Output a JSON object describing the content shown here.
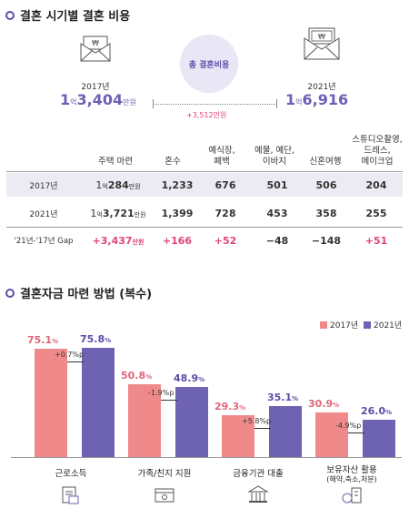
{
  "section1": {
    "title": "결혼 시기별 결혼 비용",
    "center_label": "총 결혼비용",
    "left": {
      "year": "2017년",
      "prefix": "1",
      "unit_eok": "억",
      "value": "3,404",
      "unit": "만원"
    },
    "right": {
      "year": "2021년",
      "prefix": "1",
      "unit_eok": "억",
      "value": "6,916"
    },
    "diff": "+3,512만원"
  },
  "table": {
    "headers": [
      "주택 마련",
      "혼수",
      "예식장,\n폐백",
      "예물, 예단,\n이바지",
      "신혼여행",
      "스튜디오촬영,\n드레스,\n메이크업"
    ],
    "rows": [
      {
        "label": "2017년",
        "house_pre": "1",
        "house_eok": "억",
        "house_val": "284",
        "house_unit": "만원",
        "values": [
          "1,233",
          "676",
          "501",
          "506",
          "204"
        ]
      },
      {
        "label": "2021년",
        "house_pre": "1",
        "house_eok": "억",
        "house_val": "3,721",
        "house_unit": "만원",
        "values": [
          "1,399",
          "728",
          "453",
          "358",
          "255"
        ]
      }
    ],
    "gap": {
      "label": "'21년-'17년 Gap",
      "house": "+3,437",
      "house_unit": "만원",
      "values": [
        "+166",
        "+52",
        "−48",
        "−148",
        "+51"
      ]
    }
  },
  "section2": {
    "title": "결혼자금 마련 방법 (복수)"
  },
  "chart_data": {
    "type": "bar",
    "categories": [
      "근로소득",
      "가족/친지 지원",
      "금융기관 대출",
      "보유자산 활용"
    ],
    "category_sub": [
      "",
      "",
      "",
      "(해약,축소,처분)"
    ],
    "series": [
      {
        "name": "2017년",
        "values": [
          75.1,
          50.8,
          29.3,
          30.9
        ],
        "color": "#f08a8a"
      },
      {
        "name": "2021년",
        "values": [
          75.8,
          48.9,
          35.1,
          26.0
        ],
        "color": "#6e63b2"
      }
    ],
    "value_labels": {
      "2017": [
        "75.1",
        "50.8",
        "29.3",
        "30.9"
      ],
      "2021": [
        "75.8",
        "48.9",
        "35.1",
        "26.0"
      ],
      "pct": "%"
    },
    "diffs": [
      "+0.7%p",
      "-1.9%p",
      "+5.8%p",
      "-4.9%p"
    ],
    "ylim": [
      0,
      80
    ],
    "legend": "top-right"
  }
}
